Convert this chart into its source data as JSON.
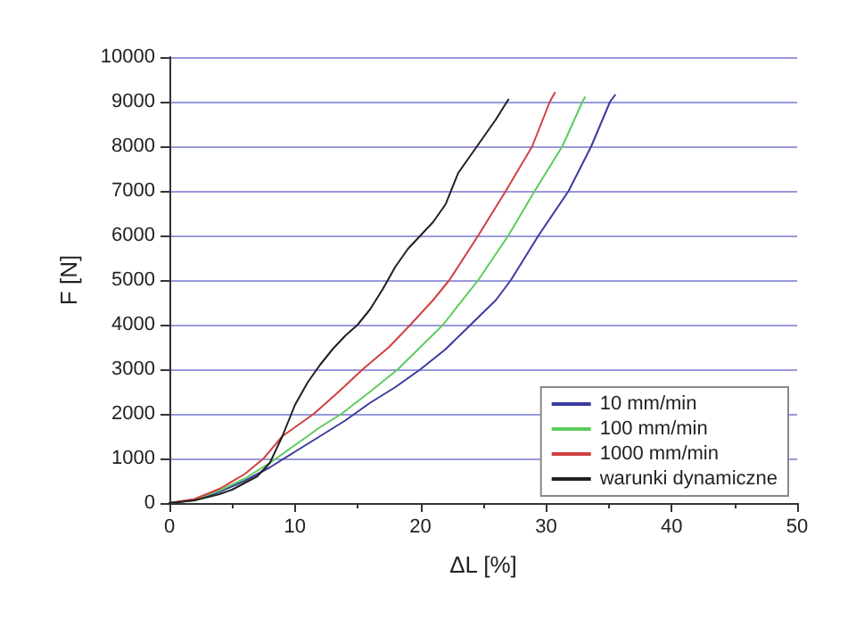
{
  "chart_data": {
    "type": "line",
    "xlabel": "ΔL [%]",
    "ylabel": "F [N]",
    "xlim": [
      0,
      50
    ],
    "xticks": [
      0,
      10,
      20,
      30,
      40,
      50
    ],
    "ylim": [
      0,
      10000
    ],
    "yticks": [
      0,
      1000,
      2000,
      3000,
      4000,
      5000,
      6000,
      7000,
      8000,
      9000,
      10000
    ],
    "grid": "y",
    "legend": "bottom right",
    "marker": "none",
    "line_style": "solid",
    "series": [
      {
        "name": "10 mm/min",
        "color": "#3a3aa0",
        "x": [
          0,
          2,
          4,
          6,
          8,
          10,
          12,
          14,
          16,
          18,
          20,
          22,
          24,
          26,
          27.2,
          29.4,
          31.8,
          33.6,
          35.1,
          35.5
        ],
        "values": [
          0,
          60,
          250,
          500,
          800,
          1150,
          1500,
          1850,
          2250,
          2600,
          3000,
          3450,
          4000,
          4550,
          5000,
          6000,
          7000,
          8000,
          9000,
          9150
        ]
      },
      {
        "name": "100 mm/min",
        "color": "#5ccc5c",
        "x": [
          0,
          2,
          4,
          6,
          8,
          10,
          12,
          13.7,
          16,
          18.2,
          20,
          21.8,
          24.6,
          27,
          29.1,
          31.3,
          32.9,
          33.1
        ],
        "values": [
          0,
          80,
          280,
          550,
          900,
          1300,
          1700,
          2000,
          2500,
          3000,
          3500,
          4000,
          5000,
          6000,
          7000,
          8000,
          9000,
          9100
        ]
      },
      {
        "name": "1000 mm/min",
        "color": "#d04040",
        "x": [
          0,
          2,
          4,
          6,
          7.5,
          9,
          11.5,
          13.5,
          15.4,
          17.5,
          19.2,
          21,
          22.3,
          24.6,
          26.8,
          28.9,
          30.3,
          30.7
        ],
        "values": [
          0,
          90,
          320,
          650,
          1000,
          1500,
          2000,
          2500,
          3000,
          3500,
          4000,
          4550,
          5000,
          6000,
          7000,
          8000,
          9000,
          9200
        ]
      },
      {
        "name": "warunki dynamiczne",
        "color": "#202020",
        "x": [
          0,
          2,
          4,
          5,
          7,
          8,
          9,
          10,
          11,
          12,
          13,
          14,
          15,
          16,
          17,
          18,
          19,
          20,
          21,
          22,
          23,
          24,
          25,
          26,
          27
        ],
        "values": [
          0,
          60,
          200,
          300,
          600,
          900,
          1500,
          2200,
          2700,
          3100,
          3450,
          3750,
          4000,
          4350,
          4800,
          5300,
          5700,
          6000,
          6300,
          6700,
          7400,
          7800,
          8200,
          8600,
          9050
        ]
      }
    ]
  }
}
